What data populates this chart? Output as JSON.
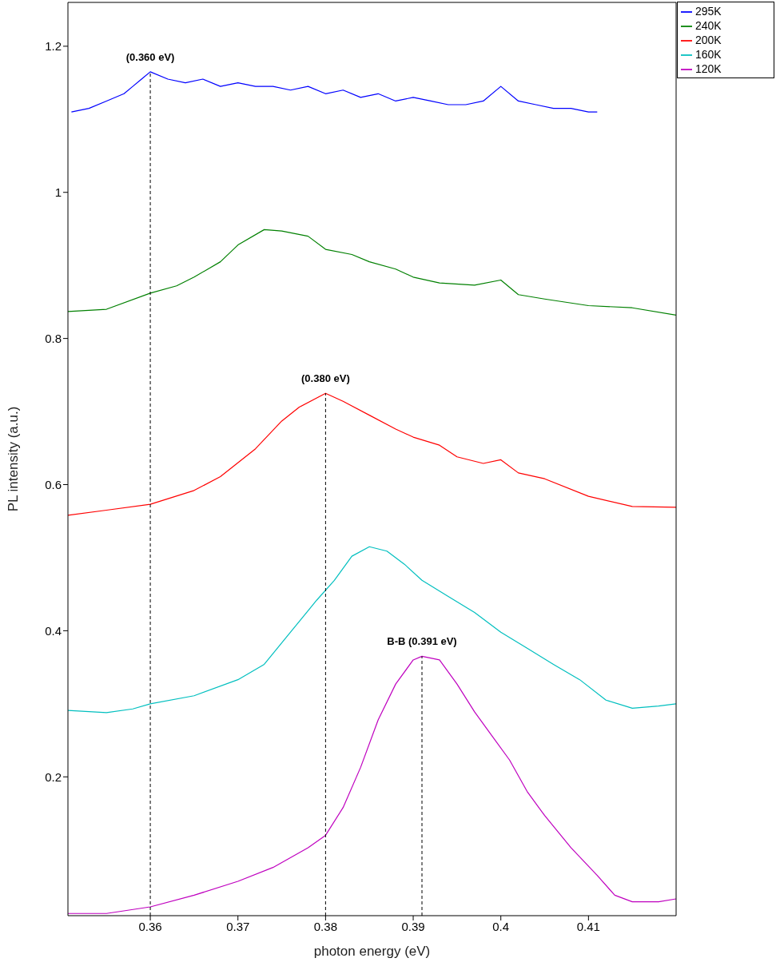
{
  "chart_data": {
    "type": "line",
    "xlabel": "photon energy (eV)",
    "ylabel": "PL intensity (a.u.)",
    "xlim": [
      0.3506,
      0.42
    ],
    "xticks": [
      0.36,
      0.37,
      0.38,
      0.39,
      0.4,
      0.41
    ],
    "ylim": [
      0.01,
      1.26
    ],
    "yticks": [
      0.2,
      0.4,
      0.6,
      0.8,
      1,
      1.2
    ],
    "grid": false,
    "legend": "top right",
    "marker": "none",
    "line_style": "solid",
    "annotations": [
      {
        "text": "(0.360 eV)",
        "x": 0.36,
        "y": 1.165
      },
      {
        "text": "(0.380 eV)",
        "x": 0.38,
        "y": 0.725
      },
      {
        "text": "B-B (0.391 eV)",
        "x": 0.391,
        "y": 0.365
      }
    ],
    "ref_lines": [
      {
        "axis": "x",
        "value": 0.36,
        "color": "#000000",
        "line_style": "dashed"
      },
      {
        "axis": "x",
        "value": 0.38,
        "color": "#000000",
        "line_style": "dashed"
      },
      {
        "axis": "x",
        "value": 0.391,
        "color": "#000000",
        "line_style": "dashed"
      }
    ],
    "series": [
      {
        "name": "295K",
        "color": "#0000ff",
        "x": [
          0.351,
          0.353,
          0.355,
          0.357,
          0.358,
          0.359,
          0.36,
          0.362,
          0.364,
          0.366,
          0.368,
          0.37,
          0.372,
          0.374,
          0.376,
          0.378,
          0.38,
          0.382,
          0.384,
          0.386,
          0.388,
          0.39,
          0.392,
          0.394,
          0.396,
          0.398,
          0.4,
          0.402,
          0.404,
          0.406,
          0.408,
          0.41,
          0.411
        ],
        "values": [
          1.11,
          1.115,
          1.125,
          1.135,
          1.145,
          1.155,
          1.165,
          1.155,
          1.15,
          1.155,
          1.145,
          1.15,
          1.145,
          1.145,
          1.14,
          1.145,
          1.135,
          1.14,
          1.13,
          1.135,
          1.125,
          1.13,
          1.125,
          1.12,
          1.12,
          1.125,
          1.145,
          1.125,
          1.12,
          1.115,
          1.115,
          1.11,
          1.11
        ]
      },
      {
        "name": "240K",
        "color": "#008000",
        "x": [
          0.3506,
          0.355,
          0.36,
          0.363,
          0.365,
          0.368,
          0.37,
          0.373,
          0.375,
          0.378,
          0.38,
          0.383,
          0.385,
          0.388,
          0.39,
          0.393,
          0.397,
          0.4,
          0.402,
          0.405,
          0.41,
          0.415,
          0.42
        ],
        "values": [
          0.837,
          0.84,
          0.862,
          0.872,
          0.884,
          0.905,
          0.928,
          0.949,
          0.947,
          0.94,
          0.922,
          0.915,
          0.905,
          0.895,
          0.884,
          0.876,
          0.873,
          0.88,
          0.86,
          0.854,
          0.845,
          0.842,
          0.832
        ]
      },
      {
        "name": "200K",
        "color": "#ff0000",
        "x": [
          0.3506,
          0.355,
          0.36,
          0.365,
          0.368,
          0.372,
          0.375,
          0.377,
          0.38,
          0.382,
          0.385,
          0.388,
          0.39,
          0.393,
          0.395,
          0.398,
          0.4,
          0.402,
          0.405,
          0.41,
          0.415,
          0.42
        ],
        "values": [
          0.558,
          0.565,
          0.573,
          0.592,
          0.611,
          0.649,
          0.687,
          0.706,
          0.725,
          0.714,
          0.695,
          0.676,
          0.665,
          0.654,
          0.638,
          0.629,
          0.634,
          0.616,
          0.608,
          0.584,
          0.57,
          0.569
        ]
      },
      {
        "name": "160K",
        "color": "#00bfbf",
        "x": [
          0.3506,
          0.355,
          0.358,
          0.36,
          0.365,
          0.37,
          0.373,
          0.376,
          0.379,
          0.381,
          0.383,
          0.385,
          0.387,
          0.389,
          0.391,
          0.394,
          0.397,
          0.4,
          0.403,
          0.406,
          0.409,
          0.412,
          0.415,
          0.418,
          0.42
        ],
        "values": [
          0.291,
          0.288,
          0.293,
          0.3,
          0.311,
          0.333,
          0.354,
          0.398,
          0.442,
          0.469,
          0.502,
          0.515,
          0.509,
          0.491,
          0.469,
          0.447,
          0.425,
          0.398,
          0.376,
          0.354,
          0.333,
          0.305,
          0.294,
          0.297,
          0.3
        ]
      },
      {
        "name": "120K",
        "color": "#bf00bf",
        "x": [
          0.3506,
          0.355,
          0.36,
          0.365,
          0.37,
          0.374,
          0.378,
          0.38,
          0.382,
          0.384,
          0.386,
          0.388,
          0.39,
          0.391,
          0.393,
          0.395,
          0.397,
          0.399,
          0.401,
          0.403,
          0.405,
          0.408,
          0.411,
          0.413,
          0.415,
          0.418,
          0.42
        ],
        "values": [
          0.013,
          0.013,
          0.022,
          0.038,
          0.057,
          0.076,
          0.103,
          0.12,
          0.158,
          0.213,
          0.278,
          0.327,
          0.36,
          0.365,
          0.36,
          0.327,
          0.289,
          0.256,
          0.223,
          0.18,
          0.147,
          0.103,
          0.065,
          0.038,
          0.029,
          0.029,
          0.033
        ]
      }
    ]
  }
}
